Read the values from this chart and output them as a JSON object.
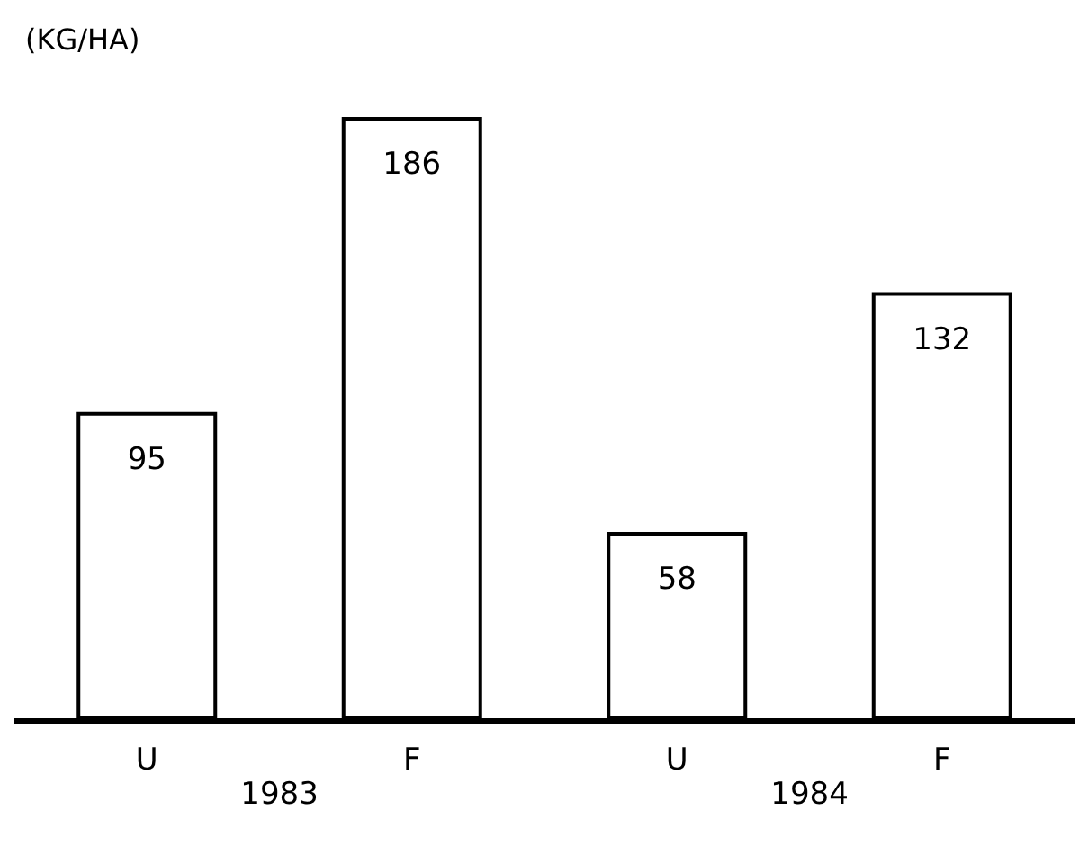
{
  "chart_data": {
    "type": "bar",
    "ylabel": "(KG/HA)",
    "categories": [
      "U",
      "F",
      "U",
      "F"
    ],
    "values": [
      95,
      186,
      58,
      132
    ],
    "color": "#ffffff",
    "data_labels": true,
    "annotations": [
      "1983",
      "1984"
    ]
  }
}
